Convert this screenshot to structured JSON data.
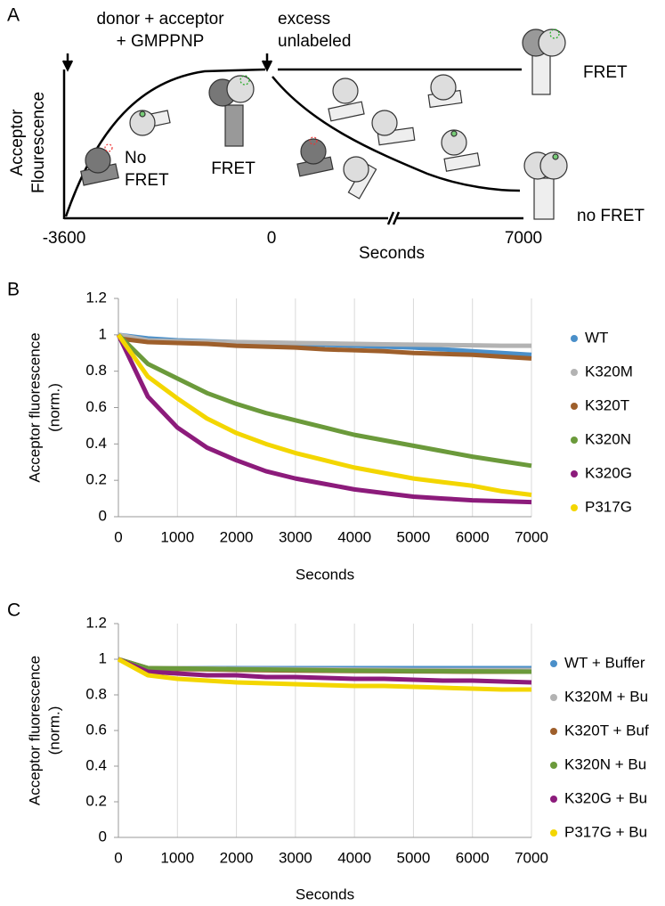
{
  "schematic": {
    "panel_label": "A",
    "arrow1": [
      "donor + acceptor",
      "+ GMPPNP"
    ],
    "arrow2": [
      "excess",
      "unlabeled"
    ],
    "ylabel": [
      "Acceptor",
      "Flourescence"
    ],
    "no_fret_left": [
      "No",
      "FRET"
    ],
    "fret_mid": "FRET",
    "fret_right": "FRET",
    "no_fret_right": "no FRET",
    "xticks": [
      "-3600",
      "0",
      "7000"
    ],
    "xlabel": "Seconds"
  },
  "chart_data": [
    {
      "type": "line",
      "panel_label": "B",
      "ylabel": [
        "Acceptor fluorescence",
        "(norm.)"
      ],
      "xlabel": "Seconds",
      "x": [
        0,
        500,
        1000,
        1500,
        2000,
        2500,
        3000,
        3500,
        4000,
        4500,
        5000,
        5500,
        6000,
        6500,
        7000
      ],
      "xlim": [
        0,
        7000
      ],
      "ylim": [
        0,
        1.2
      ],
      "xticks": [
        0,
        1000,
        2000,
        3000,
        4000,
        5000,
        6000,
        7000
      ],
      "yticks": [
        0,
        0.2,
        0.4,
        0.6,
        0.8,
        1,
        1.2
      ],
      "grid": "x",
      "legend": "right",
      "series": [
        {
          "name": "WT",
          "color": "#4a8fc9",
          "values": [
            1,
            0.98,
            0.97,
            0.965,
            0.96,
            0.955,
            0.95,
            0.945,
            0.94,
            0.935,
            0.93,
            0.92,
            0.91,
            0.9,
            0.89
          ]
        },
        {
          "name": "K320M",
          "color": "#b3b3b3",
          "values": [
            1,
            0.97,
            0.965,
            0.962,
            0.96,
            0.958,
            0.955,
            0.953,
            0.95,
            0.948,
            0.946,
            0.944,
            0.942,
            0.94,
            0.94
          ]
        },
        {
          "name": "K320T",
          "color": "#9e5f2b",
          "values": [
            0.98,
            0.96,
            0.955,
            0.95,
            0.94,
            0.935,
            0.93,
            0.92,
            0.915,
            0.91,
            0.9,
            0.895,
            0.89,
            0.88,
            0.87
          ]
        },
        {
          "name": "K320N",
          "color": "#6b9a3b",
          "values": [
            1,
            0.84,
            0.76,
            0.68,
            0.62,
            0.57,
            0.53,
            0.49,
            0.45,
            0.42,
            0.39,
            0.36,
            0.33,
            0.305,
            0.28
          ]
        },
        {
          "name": "K320G",
          "color": "#8c1b7b",
          "values": [
            1,
            0.66,
            0.49,
            0.38,
            0.31,
            0.25,
            0.21,
            0.18,
            0.15,
            0.13,
            0.11,
            0.1,
            0.09,
            0.085,
            0.08
          ]
        },
        {
          "name": "P317G",
          "color": "#f3d600",
          "values": [
            1,
            0.77,
            0.65,
            0.54,
            0.46,
            0.4,
            0.35,
            0.31,
            0.27,
            0.24,
            0.21,
            0.19,
            0.17,
            0.14,
            0.12
          ]
        }
      ]
    },
    {
      "type": "line",
      "panel_label": "C",
      "ylabel": [
        "Acceptor fluorescence",
        "(norm.)"
      ],
      "xlabel": "Seconds",
      "x": [
        0,
        500,
        1000,
        1500,
        2000,
        2500,
        3000,
        3500,
        4000,
        4500,
        5000,
        5500,
        6000,
        6500,
        7000
      ],
      "xlim": [
        0,
        7000
      ],
      "ylim": [
        0,
        1.2
      ],
      "xticks": [
        0,
        1000,
        2000,
        3000,
        4000,
        5000,
        6000,
        7000
      ],
      "yticks": [
        0,
        0.2,
        0.4,
        0.6,
        0.8,
        1,
        1.2
      ],
      "grid": "x",
      "legend": "right",
      "series": [
        {
          "name": "WT + Buffer",
          "color": "#4a8fc9",
          "values": [
            1,
            0.95,
            0.95,
            0.95,
            0.95,
            0.95,
            0.95,
            0.95,
            0.95,
            0.95,
            0.95,
            0.95,
            0.95,
            0.95,
            0.95
          ]
        },
        {
          "name": "K320M + Bu",
          "color": "#b3b3b3",
          "values": [
            1,
            0.95,
            0.95,
            0.948,
            0.946,
            0.945,
            0.944,
            0.943,
            0.942,
            0.941,
            0.94,
            0.94,
            0.94,
            0.94,
            0.94
          ]
        },
        {
          "name": "K320T + Buf",
          "color": "#9e5f2b",
          "values": [
            1,
            0.95,
            0.945,
            0.943,
            0.94,
            0.938,
            0.936,
            0.935,
            0.934,
            0.933,
            0.932,
            0.931,
            0.93,
            0.93,
            0.93
          ]
        },
        {
          "name": "K320N + Bu",
          "color": "#6b9a3b",
          "values": [
            1,
            0.95,
            0.948,
            0.946,
            0.944,
            0.942,
            0.94,
            0.938,
            0.936,
            0.935,
            0.934,
            0.933,
            0.932,
            0.931,
            0.93
          ]
        },
        {
          "name": "K320G + Bu",
          "color": "#8c1b7b",
          "values": [
            1,
            0.93,
            0.92,
            0.91,
            0.91,
            0.9,
            0.9,
            0.895,
            0.89,
            0.89,
            0.885,
            0.88,
            0.88,
            0.875,
            0.87
          ]
        },
        {
          "name": "P317G + Bu",
          "color": "#f3d600",
          "values": [
            1,
            0.91,
            0.89,
            0.88,
            0.87,
            0.865,
            0.86,
            0.855,
            0.85,
            0.85,
            0.845,
            0.84,
            0.835,
            0.83,
            0.83
          ]
        }
      ]
    }
  ]
}
